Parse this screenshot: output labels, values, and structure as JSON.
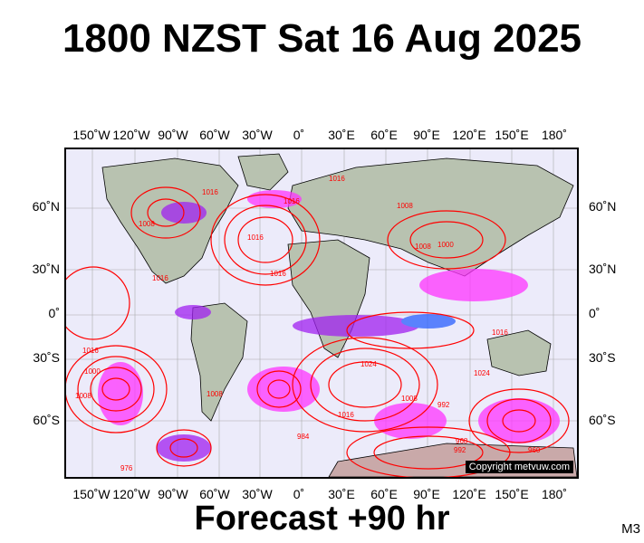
{
  "header": {
    "title": "1800 NZST Sat 16 Aug 2025"
  },
  "footer": {
    "forecast": "Forecast +90 hr",
    "code": "M3"
  },
  "map": {
    "copyright": "Copyright metvuw.com",
    "longitude_labels": [
      "150˚W",
      "120˚W",
      "90˚W",
      "60˚W",
      "30˚W",
      "0˚",
      "30˚E",
      "60˚E",
      "90˚E",
      "120˚E",
      "150˚E",
      "180˚"
    ],
    "latitude_labels": [
      "60˚N",
      "30˚N",
      "0˚",
      "30˚S",
      "60˚S"
    ],
    "isobar_labels": [
      "1016",
      "1008",
      "1016",
      "1016",
      "1016",
      "1016",
      "1008",
      "1000",
      "1008",
      "1024",
      "1016",
      "1000",
      "1008",
      "1016",
      "1008",
      "984",
      "1024",
      "1016",
      "1016",
      "1008",
      "992",
      "976",
      "968",
      "992",
      "960"
    ],
    "colors": {
      "isobar": "#ff0000",
      "ocean": "#ecebfa",
      "land": "#b8c2b0",
      "precip_light": "#ff33ff",
      "precip_mid": "#a020f0",
      "precip_heavy": "#2a60ff"
    }
  }
}
